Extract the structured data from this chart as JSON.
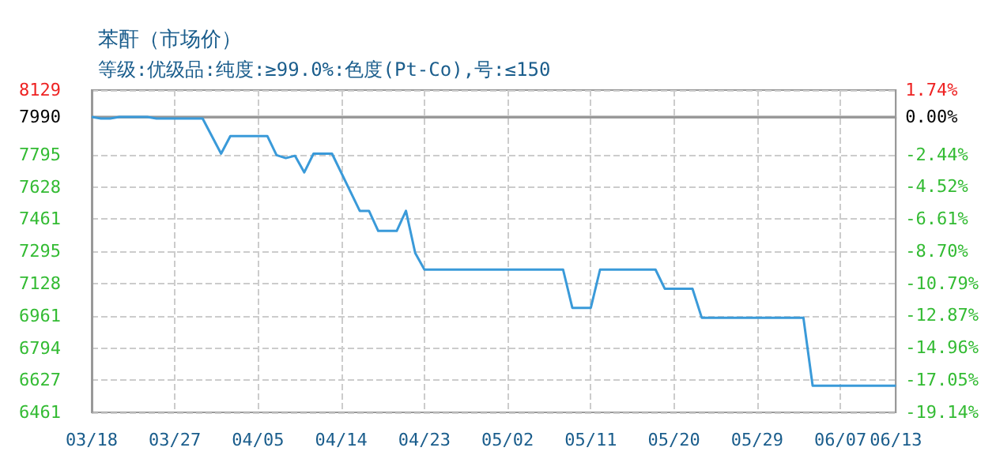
{
  "chart_data": {
    "type": "line",
    "title": "苯酐（市场价）",
    "subtitle": "等级:优级品:纯度:≥99.0%:色度(Pt-Co),号:≤150",
    "x": [
      "--03-18",
      "--03-19",
      "--03-20",
      "--03-21",
      "--03-24",
      "--03-25",
      "--03-30",
      "--04-01",
      "--04-02",
      "--04-06",
      "--04-07",
      "--04-08",
      "--04-09",
      "--04-10",
      "--04-11",
      "--04-13",
      "--04-16",
      "--04-17",
      "--04-18",
      "--04-20",
      "--04-21",
      "--04-22",
      "--04-23",
      "--05-08",
      "--05-09",
      "--05-11",
      "--05-12",
      "--05-18",
      "--05-19",
      "--05-22",
      "--05-23",
      "--06-03",
      "--06-04",
      "--06-13"
    ],
    "series": [
      {
        "color": "#3a9ad9",
        "values": [
          7990,
          7982,
          7982,
          7990,
          7990,
          7982,
          7982,
          7800,
          7891,
          7891,
          7792,
          7777,
          7789,
          7703,
          7800,
          7800,
          7504,
          7504,
          7400,
          7400,
          7504,
          7286,
          7200,
          7200,
          7002,
          7002,
          7200,
          7200,
          7101,
          7101,
          6951,
          6951,
          6599,
          6599
        ]
      }
    ],
    "xlim": [
      "--03-18",
      "--06-13"
    ],
    "xticks": [
      {
        "value": "--03-18",
        "label": "03/18"
      },
      {
        "value": "--03-27",
        "label": "03/27"
      },
      {
        "value": "--04-05",
        "label": "04/05"
      },
      {
        "value": "--04-14",
        "label": "04/14"
      },
      {
        "value": "--04-23",
        "label": "04/23"
      },
      {
        "value": "--05-02",
        "label": "05/02"
      },
      {
        "value": "--05-11",
        "label": "05/11"
      },
      {
        "value": "--05-20",
        "label": "05/20"
      },
      {
        "value": "--05-29",
        "label": "05/29"
      },
      {
        "value": "--06-07",
        "label": "06/07"
      },
      {
        "value": "--06-13",
        "label": "06/13"
      }
    ],
    "ylim": [
      6461,
      8129
    ],
    "yticks": [
      6461,
      6627,
      6794,
      6961,
      7128,
      7295,
      7461,
      7628,
      7795,
      7990,
      8129
    ],
    "y2lim": [
      -19.14,
      1.74
    ],
    "y2ticks": [
      {
        "value": -19.14,
        "label": "-19.14%"
      },
      {
        "value": -17.05,
        "label": "-17.05%"
      },
      {
        "value": -14.96,
        "label": "-14.96%"
      },
      {
        "value": -12.87,
        "label": "-12.87%"
      },
      {
        "value": -10.79,
        "label": "-10.79%"
      },
      {
        "value": -8.7,
        "label": "-8.70%"
      },
      {
        "value": -6.61,
        "label": "-6.61%"
      },
      {
        "value": -4.52,
        "label": "-4.52%"
      },
      {
        "value": -2.44,
        "label": "-2.44%"
      },
      {
        "value": 0,
        "label": "0.00%"
      },
      {
        "value": 1.74,
        "label": "1.74%"
      }
    ],
    "ref_lines": [
      {
        "axis": "y",
        "value": 7990,
        "color": "#999999"
      }
    ],
    "grid": true,
    "marker": "none",
    "line_style": "solid"
  }
}
